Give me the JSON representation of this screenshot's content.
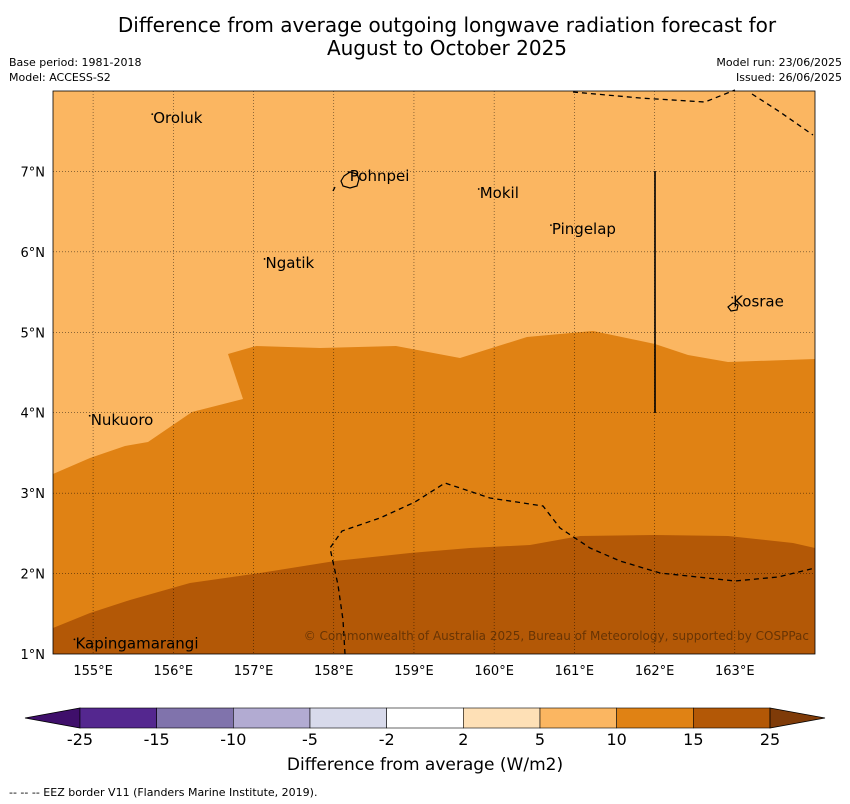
{
  "title_line1": "Difference from average outgoing longwave radiation forecast for",
  "title_line2": "August to October 2025",
  "base_period": "Base period: 1981-2018",
  "model": "Model: ACCESS-S2",
  "model_run": "Model run: 23/06/2025",
  "issued": "Issued: 26/06/2025",
  "copyright": "© Commonwealth of Australia 2025, Bureau of Meteorology, supported by COSPPac",
  "footer_note": "--  --  -- EEZ border V11 (Flanders Marine Institute, 2019).",
  "colorbar": {
    "title": "Difference from average (W/m2)",
    "tick_labels": [
      "-25",
      "-15",
      "-10",
      "-5",
      "-2",
      "2",
      "5",
      "10",
      "15",
      "25"
    ],
    "colors": [
      "#3f0f6b",
      "#54278f",
      "#8073ac",
      "#b2abd2",
      "#d8daeb",
      "#ffffff",
      "#fee0b6",
      "#fbb661",
      "#e08214",
      "#b35806",
      "#7f3b08"
    ]
  },
  "map": {
    "lon_range": [
      154.5,
      164.0
    ],
    "lat_range": [
      1.0,
      8.0
    ],
    "lon_ticks": [
      "155°E",
      "156°E",
      "157°E",
      "158°E",
      "159°E",
      "160°E",
      "161°E",
      "162°E",
      "163°E"
    ],
    "lat_ticks": [
      "1°N",
      "2°N",
      "3°N",
      "4°N",
      "5°N",
      "6°N",
      "7°N"
    ],
    "places": [
      {
        "name": "Oroluk",
        "lon": 155.75,
        "lat": 7.6
      },
      {
        "name": "Pohnpei",
        "lon": 158.2,
        "lat": 6.88
      },
      {
        "name": "Mokil",
        "lon": 159.82,
        "lat": 6.67
      },
      {
        "name": "Pingelap",
        "lon": 160.72,
        "lat": 6.22
      },
      {
        "name": "Ngatik",
        "lon": 157.15,
        "lat": 5.8
      },
      {
        "name": "Kosrae",
        "lon": 162.98,
        "lat": 5.32
      },
      {
        "name": "Nukuoro",
        "lon": 154.97,
        "lat": 3.85
      },
      {
        "name": "Kapingamarangi",
        "lon": 154.78,
        "lat": 1.07
      }
    ],
    "regions": [
      {
        "category": "5 to 10",
        "color": "#fbb661"
      },
      {
        "category": "10 to 15",
        "color": "#e08214"
      },
      {
        "category": "15 to 25",
        "color": "#b35806"
      }
    ]
  }
}
